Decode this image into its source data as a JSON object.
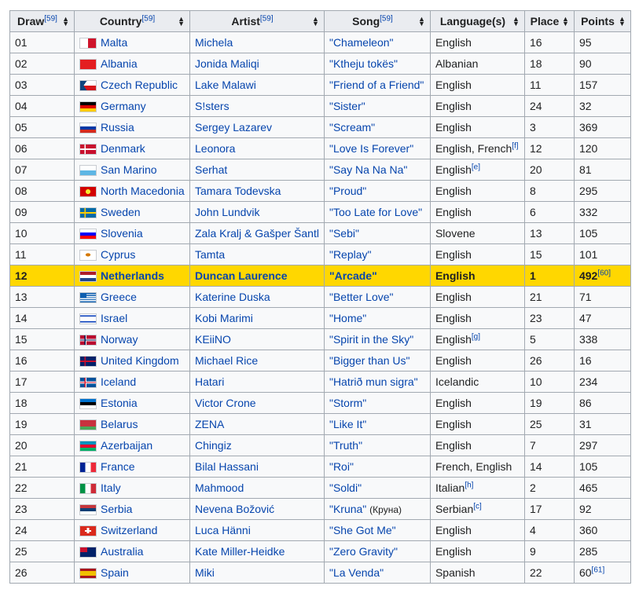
{
  "headers": [
    {
      "label": "Draw",
      "ref": "[59]"
    },
    {
      "label": "Country",
      "ref": "[59]"
    },
    {
      "label": "Artist",
      "ref": "[59]"
    },
    {
      "label": "Song",
      "ref": "[59]"
    },
    {
      "label": "Language(s)",
      "ref": ""
    },
    {
      "label": "Place",
      "ref": ""
    },
    {
      "label": "Points",
      "ref": ""
    }
  ],
  "highlight_color": "#ffd700",
  "rows": [
    {
      "draw": "01",
      "flag": "flag-mt",
      "country": "Malta",
      "artist": "Michela",
      "song": "\"Chameleon\"",
      "language": "English",
      "place": "16",
      "points": "95"
    },
    {
      "draw": "02",
      "flag": "flag-al",
      "country": "Albania",
      "artist": "Jonida Maliqi",
      "song": "\"Ktheju tokës\"",
      "language": "Albanian",
      "place": "18",
      "points": "90"
    },
    {
      "draw": "03",
      "flag": "flag-cz",
      "country": "Czech Republic",
      "artist": "Lake Malawi",
      "song": "\"Friend of a Friend\"",
      "language": "English",
      "place": "11",
      "points": "157"
    },
    {
      "draw": "04",
      "flag": "flag-de",
      "country": "Germany",
      "artist": "S!sters",
      "song": "\"Sister\"",
      "language": "English",
      "place": "24",
      "points": "32"
    },
    {
      "draw": "05",
      "flag": "flag-ru",
      "country": "Russia",
      "artist": "Sergey Lazarev",
      "song": "\"Scream\"",
      "language": "English",
      "place": "3",
      "points": "369"
    },
    {
      "draw": "06",
      "flag": "flag-dk",
      "country": "Denmark",
      "artist": "Leonora",
      "song": "\"Love Is Forever\"",
      "language": "English, French",
      "language_note": "[f]",
      "place": "12",
      "points": "120"
    },
    {
      "draw": "07",
      "flag": "flag-sm",
      "country": "San Marino",
      "artist": "Serhat",
      "song": "\"Say Na Na Na\"",
      "language": "English",
      "language_note": "[e]",
      "place": "20",
      "points": "81"
    },
    {
      "draw": "08",
      "flag": "flag-mk",
      "country": "North Macedonia",
      "artist": "Tamara Todevska",
      "song": "\"Proud\"",
      "language": "English",
      "place": "8",
      "points": "295"
    },
    {
      "draw": "09",
      "flag": "flag-se",
      "country": "Sweden",
      "artist": "John Lundvik",
      "song": "\"Too Late for Love\"",
      "language": "English",
      "place": "6",
      "points": "332"
    },
    {
      "draw": "10",
      "flag": "flag-si",
      "country": "Slovenia",
      "artist": "Zala Kralj & Gašper Šantl",
      "song": "\"Sebi\"",
      "language": "Slovene",
      "place": "13",
      "points": "105"
    },
    {
      "draw": "11",
      "flag": "flag-cy",
      "country": "Cyprus",
      "artist": "Tamta",
      "song": "\"Replay\"",
      "language": "English",
      "place": "15",
      "points": "101"
    },
    {
      "draw": "12",
      "flag": "flag-nl",
      "country": "Netherlands",
      "artist": "Duncan Laurence",
      "song": "\"Arcade\"",
      "language": "English",
      "place": "1",
      "points": "492",
      "points_note": "[60]",
      "winner": true
    },
    {
      "draw": "13",
      "flag": "flag-gr",
      "country": "Greece",
      "artist": "Katerine Duska",
      "song": "\"Better Love\"",
      "language": "English",
      "place": "21",
      "points": "71"
    },
    {
      "draw": "14",
      "flag": "flag-il",
      "country": "Israel",
      "artist": "Kobi Marimi",
      "song": "\"Home\"",
      "language": "English",
      "place": "23",
      "points": "47"
    },
    {
      "draw": "15",
      "flag": "flag-no",
      "country": "Norway",
      "artist": "KEiiNO",
      "song": "\"Spirit in the Sky\"",
      "language": "English",
      "language_note": "[g]",
      "place": "5",
      "points": "338"
    },
    {
      "draw": "16",
      "flag": "flag-gb",
      "country": "United Kingdom",
      "artist": "Michael Rice",
      "song": "\"Bigger than Us\"",
      "language": "English",
      "place": "26",
      "points": "16"
    },
    {
      "draw": "17",
      "flag": "flag-is",
      "country": "Iceland",
      "artist": "Hatari",
      "song": "\"Hatrið mun sigra\"",
      "language": "Icelandic",
      "place": "10",
      "points": "234"
    },
    {
      "draw": "18",
      "flag": "flag-ee",
      "country": "Estonia",
      "artist": "Victor Crone",
      "song": "\"Storm\"",
      "language": "English",
      "place": "19",
      "points": "86"
    },
    {
      "draw": "19",
      "flag": "flag-by",
      "country": "Belarus",
      "artist": "ZENA",
      "song": "\"Like It\"",
      "language": "English",
      "place": "25",
      "points": "31"
    },
    {
      "draw": "20",
      "flag": "flag-az",
      "country": "Azerbaijan",
      "artist": "Chingiz",
      "song": "\"Truth\"",
      "language": "English",
      "place": "7",
      "points": "297"
    },
    {
      "draw": "21",
      "flag": "flag-fr",
      "country": "France",
      "artist": "Bilal Hassani",
      "song": "\"Roi\"",
      "language": "French, English",
      "place": "14",
      "points": "105"
    },
    {
      "draw": "22",
      "flag": "flag-it",
      "country": "Italy",
      "artist": "Mahmood",
      "song": "\"Soldi\"",
      "language": "Italian",
      "language_note": "[h]",
      "place": "2",
      "points": "465"
    },
    {
      "draw": "23",
      "flag": "flag-rs",
      "country": "Serbia",
      "artist": "Nevena Božović",
      "song": "\"Kruna\"",
      "song_alt": "(Круна)",
      "language": "Serbian",
      "language_note": "[c]",
      "place": "17",
      "points": "92"
    },
    {
      "draw": "24",
      "flag": "flag-ch",
      "country": "Switzerland",
      "artist": "Luca Hänni",
      "song": "\"She Got Me\"",
      "language": "English",
      "place": "4",
      "points": "360"
    },
    {
      "draw": "25",
      "flag": "flag-au",
      "country": "Australia",
      "artist": "Kate Miller-Heidke",
      "song": "\"Zero Gravity\"",
      "language": "English",
      "place": "9",
      "points": "285"
    },
    {
      "draw": "26",
      "flag": "flag-es",
      "country": "Spain",
      "artist": "Miki",
      "song": "\"La Venda\"",
      "language": "Spanish",
      "place": "22",
      "points": "60",
      "points_note": "[61]"
    }
  ]
}
